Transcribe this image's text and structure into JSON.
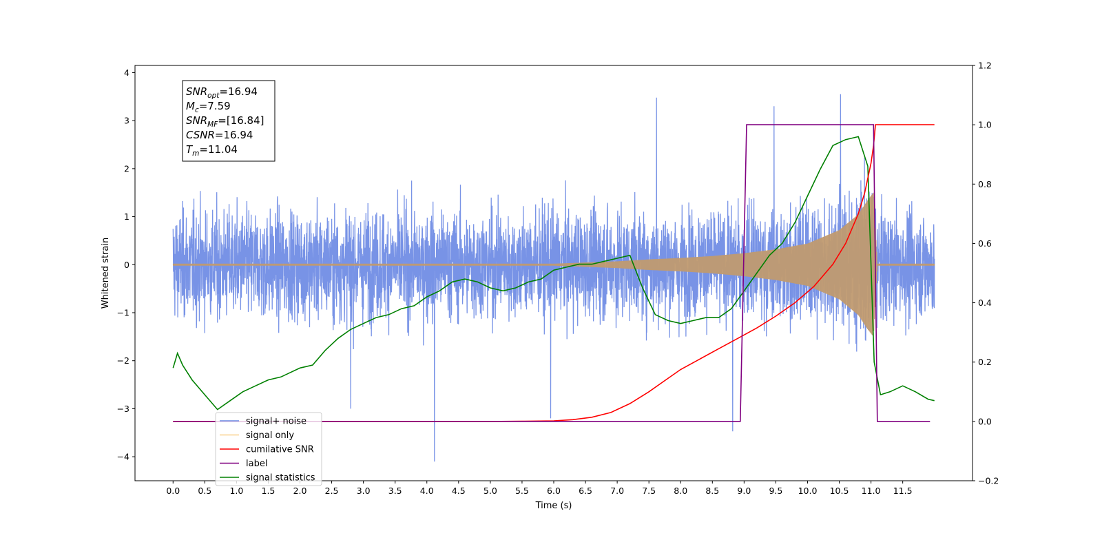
{
  "chart_data": {
    "type": "line",
    "xlabel": "Time (s)",
    "ylabel_left": "Whitened strain",
    "xlim": [
      -0.6,
      12.6
    ],
    "ylim_left": [
      -4.5,
      4.15
    ],
    "ylim_right": [
      -0.2,
      1.2
    ],
    "x_ticks": [
      "0.0",
      "0.5",
      "1.0",
      "1.5",
      "2.0",
      "2.5",
      "3.0",
      "3.5",
      "4.0",
      "4.5",
      "5.0",
      "5.5",
      "6.0",
      "6.5",
      "7.0",
      "7.5",
      "8.0",
      "8.5",
      "9.0",
      "9.5",
      "10.0",
      "10.5",
      "11.0",
      "11.5"
    ],
    "y_ticks_left": [
      "−4",
      "−3",
      "−2",
      "−1",
      "0",
      "1",
      "2",
      "3",
      "4"
    ],
    "y_ticks_right": [
      "−0.2",
      "0.0",
      "0.2",
      "0.4",
      "0.6",
      "0.8",
      "1.0",
      "1.2"
    ],
    "grid": false,
    "legend_position": "lower-left",
    "info_box": {
      "lines": [
        {
          "sym": "SNR",
          "sub": "opt",
          "rest": "=16.94"
        },
        {
          "sym": "M",
          "sub": "c",
          "rest": "=7.59"
        },
        {
          "sym": "SNR",
          "sub": "MF",
          "rest": "=[16.84]"
        },
        {
          "sym": "CSNR",
          "sub": "",
          "rest": "=16.94"
        },
        {
          "sym": "T",
          "sub": "m",
          "rest": "=11.04"
        }
      ]
    },
    "series": [
      {
        "name": "signal+ noise",
        "axis": "left",
        "color": "#6c8ae4",
        "kind": "noise",
        "x_range": [
          0.0,
          12.0
        ],
        "typical_band": [
          -2.3,
          2.5
        ],
        "peaks": [
          {
            "x": 4.12,
            "y": -4.1
          },
          {
            "x": 8.82,
            "y": -3.47
          },
          {
            "x": 10.52,
            "y": 3.55
          },
          {
            "x": 7.62,
            "y": 3.48
          },
          {
            "x": 9.47,
            "y": 3.3
          },
          {
            "x": 2.8,
            "y": -3.0
          },
          {
            "x": 5.95,
            "y": -3.2
          }
        ]
      },
      {
        "name": "signal only",
        "axis": "left",
        "color": "#f5b041",
        "kind": "chirp",
        "merger_time": 11.04,
        "envelope": {
          "x": [
            6.0,
            7.0,
            7.5,
            8.0,
            8.5,
            9.0,
            9.5,
            10.0,
            10.5,
            10.8,
            10.95,
            11.04,
            11.1,
            12.0
          ],
          "y": [
            0.02,
            0.07,
            0.11,
            0.14,
            0.18,
            0.24,
            0.32,
            0.44,
            0.72,
            1.05,
            1.35,
            1.5,
            0.02,
            0.02
          ]
        }
      },
      {
        "name": "cumilative SNR",
        "axis": "right",
        "color": "#ff0000",
        "x": [
          0,
          5.0,
          5.5,
          6.0,
          6.3,
          6.6,
          6.9,
          7.2,
          7.5,
          7.8,
          8.0,
          8.3,
          8.6,
          8.9,
          9.2,
          9.5,
          9.8,
          10.1,
          10.4,
          10.6,
          10.8,
          10.9,
          11.0,
          11.04,
          11.07,
          12.0
        ],
        "y": [
          0,
          0,
          0.0005,
          0.002,
          0.006,
          0.014,
          0.03,
          0.06,
          0.1,
          0.145,
          0.175,
          0.21,
          0.245,
          0.28,
          0.315,
          0.355,
          0.4,
          0.455,
          0.53,
          0.6,
          0.7,
          0.77,
          0.87,
          0.93,
          1.0,
          1.0
        ]
      },
      {
        "name": "label",
        "axis": "right",
        "color": "#800080",
        "x": [
          0,
          8.94,
          9.04,
          11.04,
          11.1,
          11.93
        ],
        "y": [
          0,
          0,
          1,
          1,
          0,
          0
        ]
      },
      {
        "name": "signal statistics",
        "axis": "right",
        "color": "#008000",
        "x": [
          0.0,
          0.07,
          0.15,
          0.3,
          0.5,
          0.7,
          0.9,
          1.1,
          1.3,
          1.5,
          1.7,
          2.0,
          2.2,
          2.4,
          2.6,
          2.8,
          3.0,
          3.2,
          3.4,
          3.6,
          3.8,
          4.0,
          4.2,
          4.4,
          4.6,
          4.8,
          5.0,
          5.2,
          5.4,
          5.6,
          5.8,
          6.0,
          6.2,
          6.4,
          6.6,
          6.8,
          7.0,
          7.2,
          7.4,
          7.6,
          7.8,
          8.0,
          8.2,
          8.4,
          8.6,
          8.8,
          9.0,
          9.2,
          9.4,
          9.6,
          9.8,
          10.0,
          10.2,
          10.4,
          10.6,
          10.8,
          10.95,
          11.05,
          11.15,
          11.3,
          11.5,
          11.7,
          11.9,
          12.0
        ],
        "y": [
          0.18,
          0.23,
          0.19,
          0.14,
          0.09,
          0.04,
          0.07,
          0.1,
          0.12,
          0.14,
          0.15,
          0.18,
          0.19,
          0.24,
          0.28,
          0.31,
          0.33,
          0.35,
          0.36,
          0.38,
          0.39,
          0.42,
          0.44,
          0.47,
          0.48,
          0.47,
          0.45,
          0.44,
          0.45,
          0.47,
          0.48,
          0.51,
          0.52,
          0.53,
          0.53,
          0.54,
          0.55,
          0.56,
          0.45,
          0.36,
          0.34,
          0.33,
          0.34,
          0.35,
          0.35,
          0.38,
          0.44,
          0.5,
          0.56,
          0.6,
          0.67,
          0.76,
          0.85,
          0.93,
          0.95,
          0.96,
          0.86,
          0.2,
          0.09,
          0.1,
          0.12,
          0.1,
          0.075,
          0.07
        ]
      }
    ]
  }
}
